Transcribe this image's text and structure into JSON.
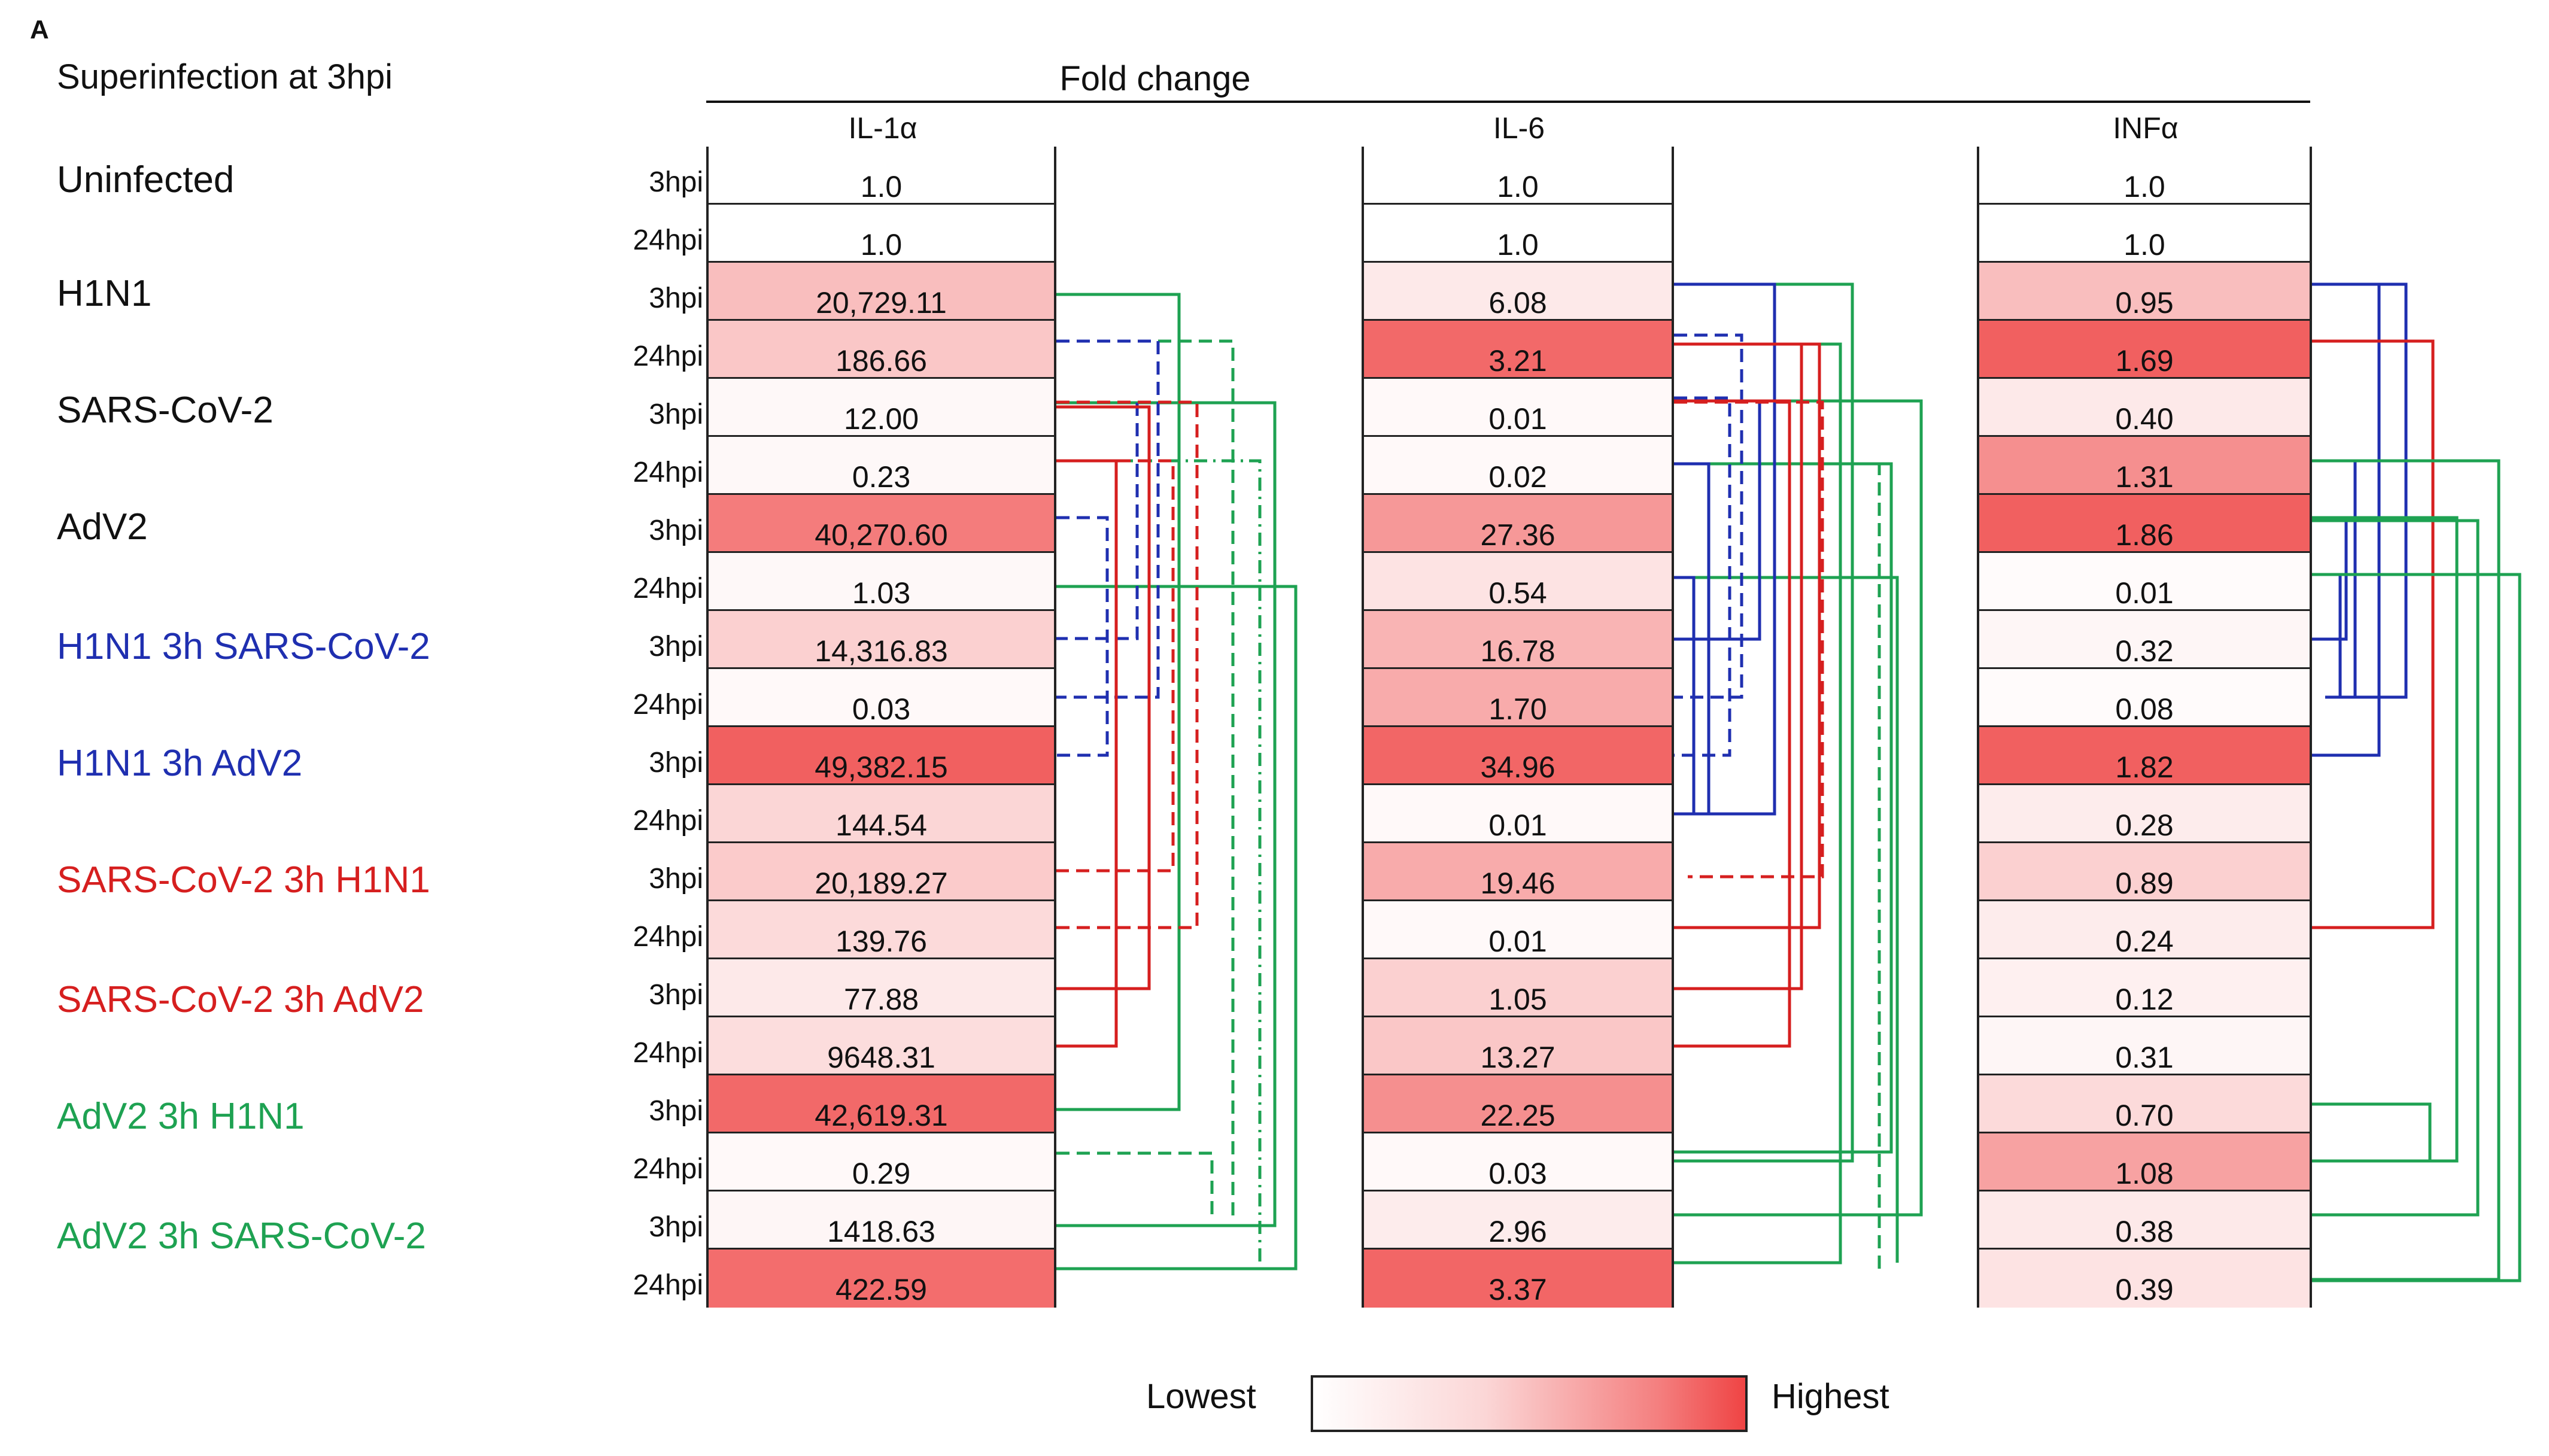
{
  "panel_label": "A",
  "subtitle": "Superinfection at 3hpi",
  "chart_data": {
    "type": "heatmap",
    "title": "Fold change",
    "columns": [
      "IL-1α",
      "IL-6",
      "INFα"
    ],
    "groups": [
      {
        "name": "Uninfected",
        "color": "#111111"
      },
      {
        "name": "H1N1",
        "color": "#111111"
      },
      {
        "name": "SARS-CoV-2",
        "color": "#111111"
      },
      {
        "name": "AdV2",
        "color": "#111111"
      },
      {
        "name": "H1N1 3h SARS-CoV-2",
        "color": "#1f2fb0"
      },
      {
        "name": "H1N1 3h AdV2",
        "color": "#1f2fb0"
      },
      {
        "name": "SARS-CoV-2 3h H1N1",
        "color": "#d61f1f"
      },
      {
        "name": "SARS-CoV-2 3h AdV2",
        "color": "#d61f1f"
      },
      {
        "name": "AdV2 3h H1N1",
        "color": "#1ea252"
      },
      {
        "name": "AdV2 3h SARS-CoV-2",
        "color": "#1ea252"
      }
    ],
    "timepoints": [
      "3hpi",
      "24hpi",
      "3hpi",
      "24hpi",
      "3hpi",
      "24hpi",
      "3hpi",
      "24hpi",
      "3hpi",
      "24hpi",
      "3hpi",
      "24hpi",
      "3hpi",
      "24hpi",
      "3hpi",
      "24hpi",
      "3hpi",
      "24hpi",
      "3hpi",
      "24hpi"
    ],
    "values": {
      "IL-1α": [
        "1.0",
        "1.0",
        "20,729.11",
        "186.66",
        "12.00",
        "0.23",
        "40,270.60",
        "1.03",
        "14,316.83",
        "0.03",
        "49,382.15",
        "144.54",
        "20,189.27",
        "139.76",
        "77.88",
        "9648.31",
        "42,619.31",
        "0.29",
        "1418.63",
        "422.59"
      ],
      "IL-6": [
        "1.0",
        "1.0",
        "6.08",
        "3.21",
        "0.01",
        "0.02",
        "27.36",
        "0.54",
        "16.78",
        "1.70",
        "34.96",
        "0.01",
        "19.46",
        "0.01",
        "1.05",
        "13.27",
        "22.25",
        "0.03",
        "2.96",
        "3.37"
      ],
      "INFα": [
        "1.0",
        "1.0",
        "0.95",
        "1.69",
        "0.40",
        "1.31",
        "1.86",
        "0.01",
        "0.32",
        "0.08",
        "1.82",
        "0.28",
        "0.89",
        "0.24",
        "0.12",
        "0.31",
        "0.70",
        "1.08",
        "0.38",
        "0.39"
      ]
    },
    "intensity": {
      "IL-1α": [
        0,
        0,
        0.35,
        0.3,
        0.04,
        0.04,
        0.7,
        0.04,
        0.25,
        0.03,
        0.85,
        0.22,
        0.28,
        0.2,
        0.12,
        0.18,
        0.8,
        0.03,
        0.05,
        0.78
      ],
      "IL-6": [
        0,
        0,
        0.12,
        0.8,
        0.03,
        0.03,
        0.55,
        0.15,
        0.4,
        0.45,
        0.82,
        0.03,
        0.45,
        0.03,
        0.25,
        0.3,
        0.6,
        0.03,
        0.1,
        0.82
      ],
      "INFα": [
        0,
        0,
        0.35,
        0.85,
        0.12,
        0.6,
        0.85,
        0.02,
        0.05,
        0.02,
        0.85,
        0.1,
        0.25,
        0.1,
        0.08,
        0.05,
        0.2,
        0.5,
        0.12,
        0.15
      ]
    },
    "legend": {
      "low": "Lowest",
      "high": "Highest"
    },
    "colors": {
      "low": "#ffffff",
      "high": "#ef4444",
      "blue": "#1f2fb0",
      "red": "#d61f1f",
      "green": "#1ea252"
    }
  }
}
